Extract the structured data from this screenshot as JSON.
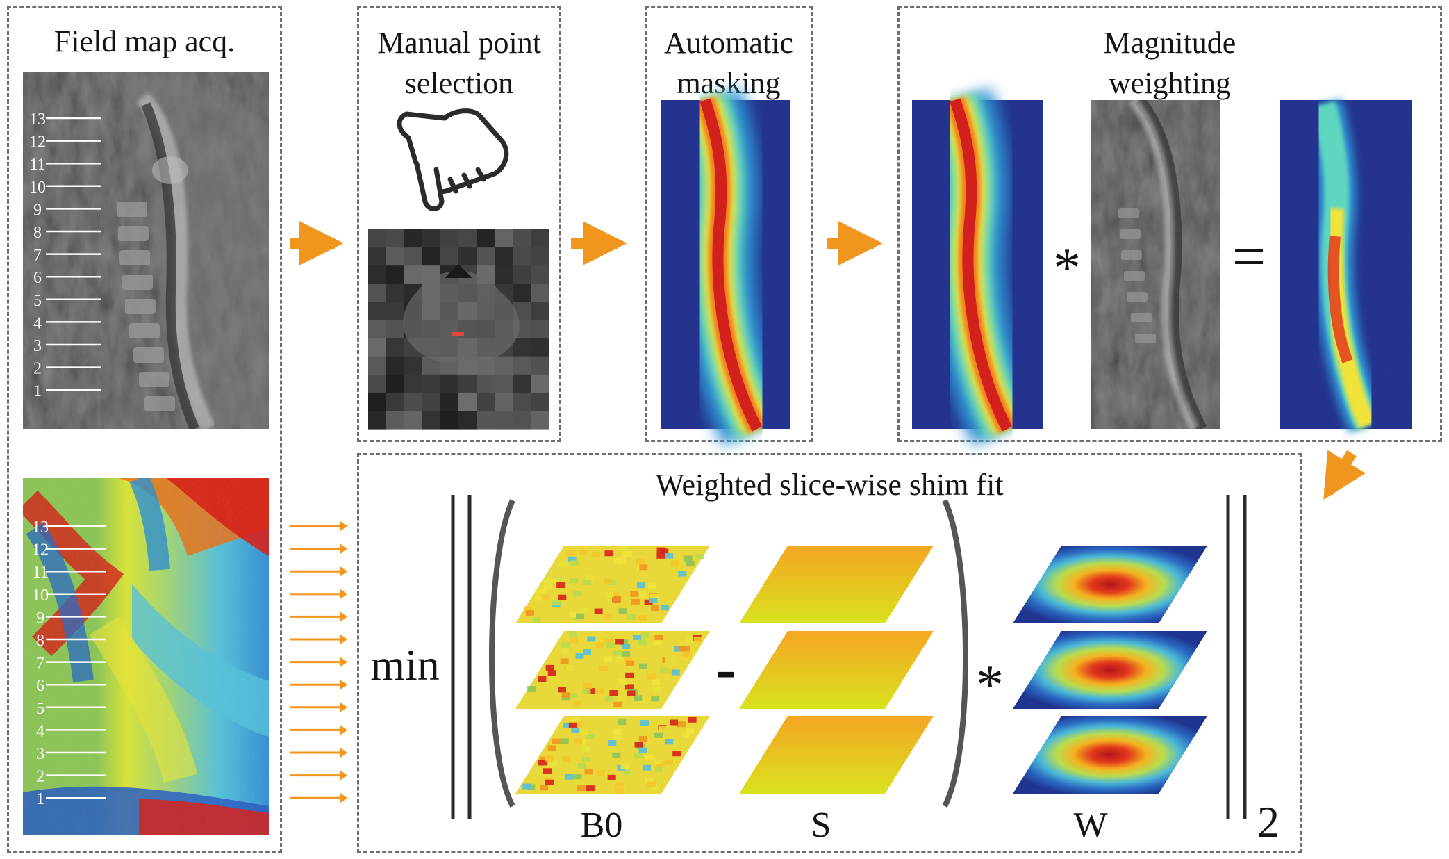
{
  "panels": {
    "field_map": {
      "title": "Field map acq."
    },
    "manual": {
      "title_line1": "Manual point",
      "title_line2": "selection"
    },
    "masking": {
      "title_line1": "Automatic",
      "title_line2": "masking"
    },
    "weighting": {
      "title_line1": "Magnitude",
      "title_line2": "weighting"
    },
    "shim_fit": {
      "title": "Weighted slice-wise shim fit"
    }
  },
  "slice_labels": [
    "1",
    "2",
    "3",
    "4",
    "5",
    "6",
    "7",
    "8",
    "9",
    "10",
    "11",
    "12",
    "13"
  ],
  "operators": {
    "multiply": "*",
    "equals": "=",
    "minus": "-"
  },
  "equation": {
    "min": "min",
    "b0": "B0",
    "s": "S",
    "w": "W",
    "norm_subscript": "2"
  },
  "colors": {
    "arrow": "#f0961e",
    "border": "#6e6e6e",
    "jet_background": "#24348e",
    "field_green": "#8cc45a"
  }
}
